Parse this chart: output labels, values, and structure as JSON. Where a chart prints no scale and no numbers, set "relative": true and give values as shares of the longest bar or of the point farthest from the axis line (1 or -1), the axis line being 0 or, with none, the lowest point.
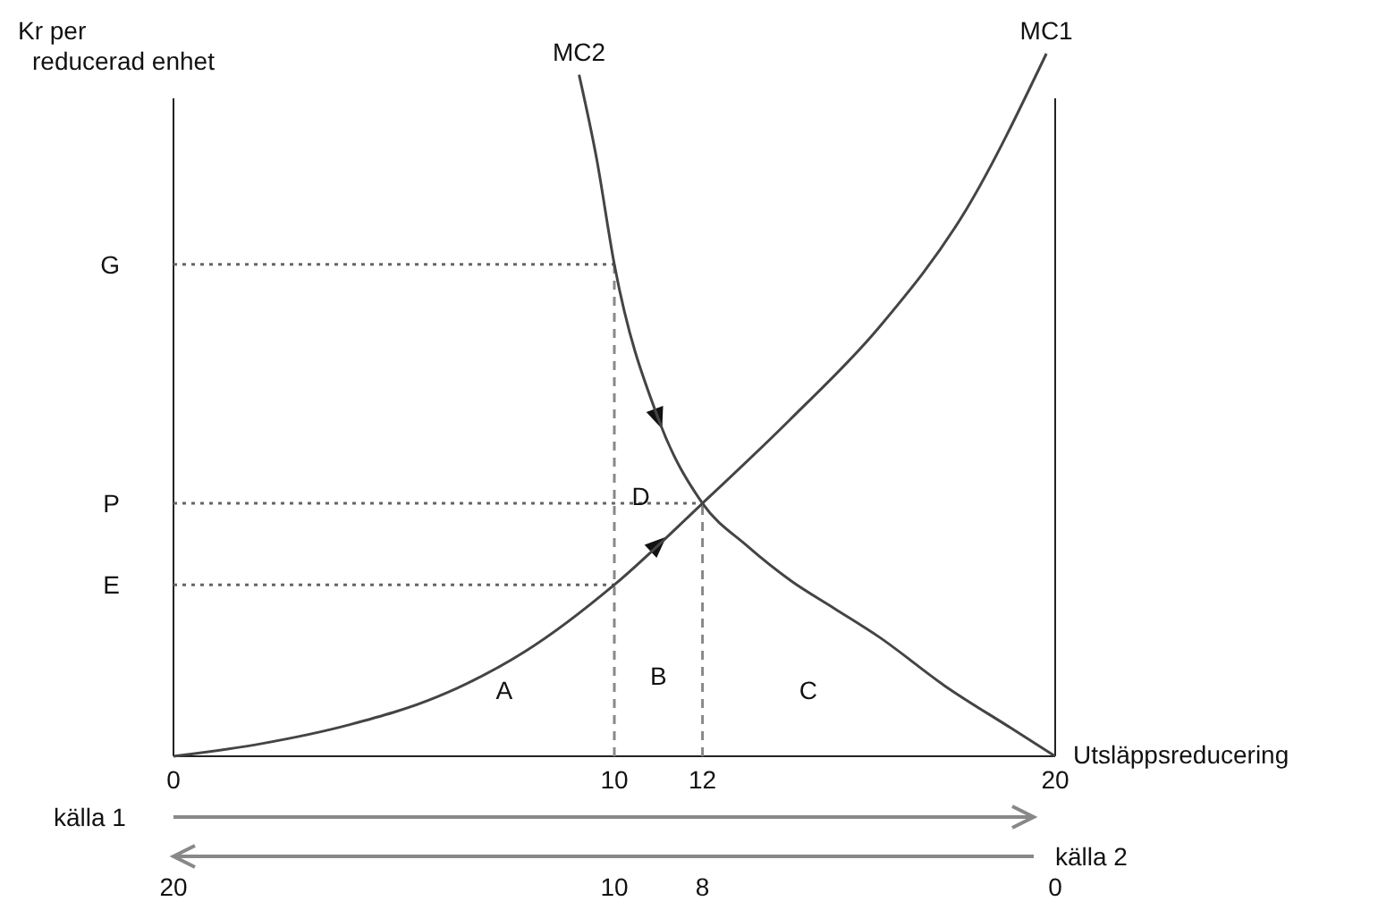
{
  "chart_data": {
    "type": "line",
    "relative": true,
    "ylabel": "Kr per\nreducerad enhet",
    "xlabel": "Utsläppsreducering",
    "x2label": "källa 2",
    "xlim": [
      0,
      20
    ],
    "xticks": [
      0,
      10,
      12,
      20
    ],
    "x2lim": [
      20,
      0
    ],
    "x2ticks": [
      20,
      10,
      8,
      0
    ],
    "series": [
      {
        "name": "MC1",
        "color": "#444444",
        "x": [
          0,
          2,
          4,
          6,
          8,
          10,
          12,
          14,
          16,
          18,
          19.8
        ],
        "values": [
          0,
          0.018,
          0.045,
          0.085,
          0.15,
          0.244,
          0.36,
          0.48,
          0.61,
          0.78,
          1
        ]
      },
      {
        "name": "MC2",
        "color": "#444444",
        "x": [
          9.2,
          9.6,
          10,
          11,
          12,
          13,
          14,
          15,
          16,
          17.5,
          19,
          20
        ],
        "values": [
          0.97,
          0.85,
          0.7,
          0.48,
          0.36,
          0.3,
          0.25,
          0.21,
          0.17,
          0.1,
          0.04,
          0
        ]
      }
    ],
    "ref_lines": [
      {
        "axis": "y",
        "value": 0.7,
        "label": "G",
        "line_style": "dotted",
        "color": "#666666"
      },
      {
        "axis": "y",
        "value": 0.36,
        "label": "P",
        "line_style": "dotted",
        "color": "#666666"
      },
      {
        "axis": "y",
        "value": 0.244,
        "label": "E",
        "line_style": "dotted",
        "color": "#666666"
      },
      {
        "axis": "x",
        "value": 10,
        "line_style": "dashed",
        "color": "#888888"
      },
      {
        "axis": "x",
        "value": 12,
        "line_style": "dashed",
        "color": "#888888"
      }
    ],
    "annotations": [
      "A",
      "B",
      "C",
      {
        "text": "D",
        "x": 10.6,
        "y": 0.37
      },
      "källa 1"
    ]
  }
}
